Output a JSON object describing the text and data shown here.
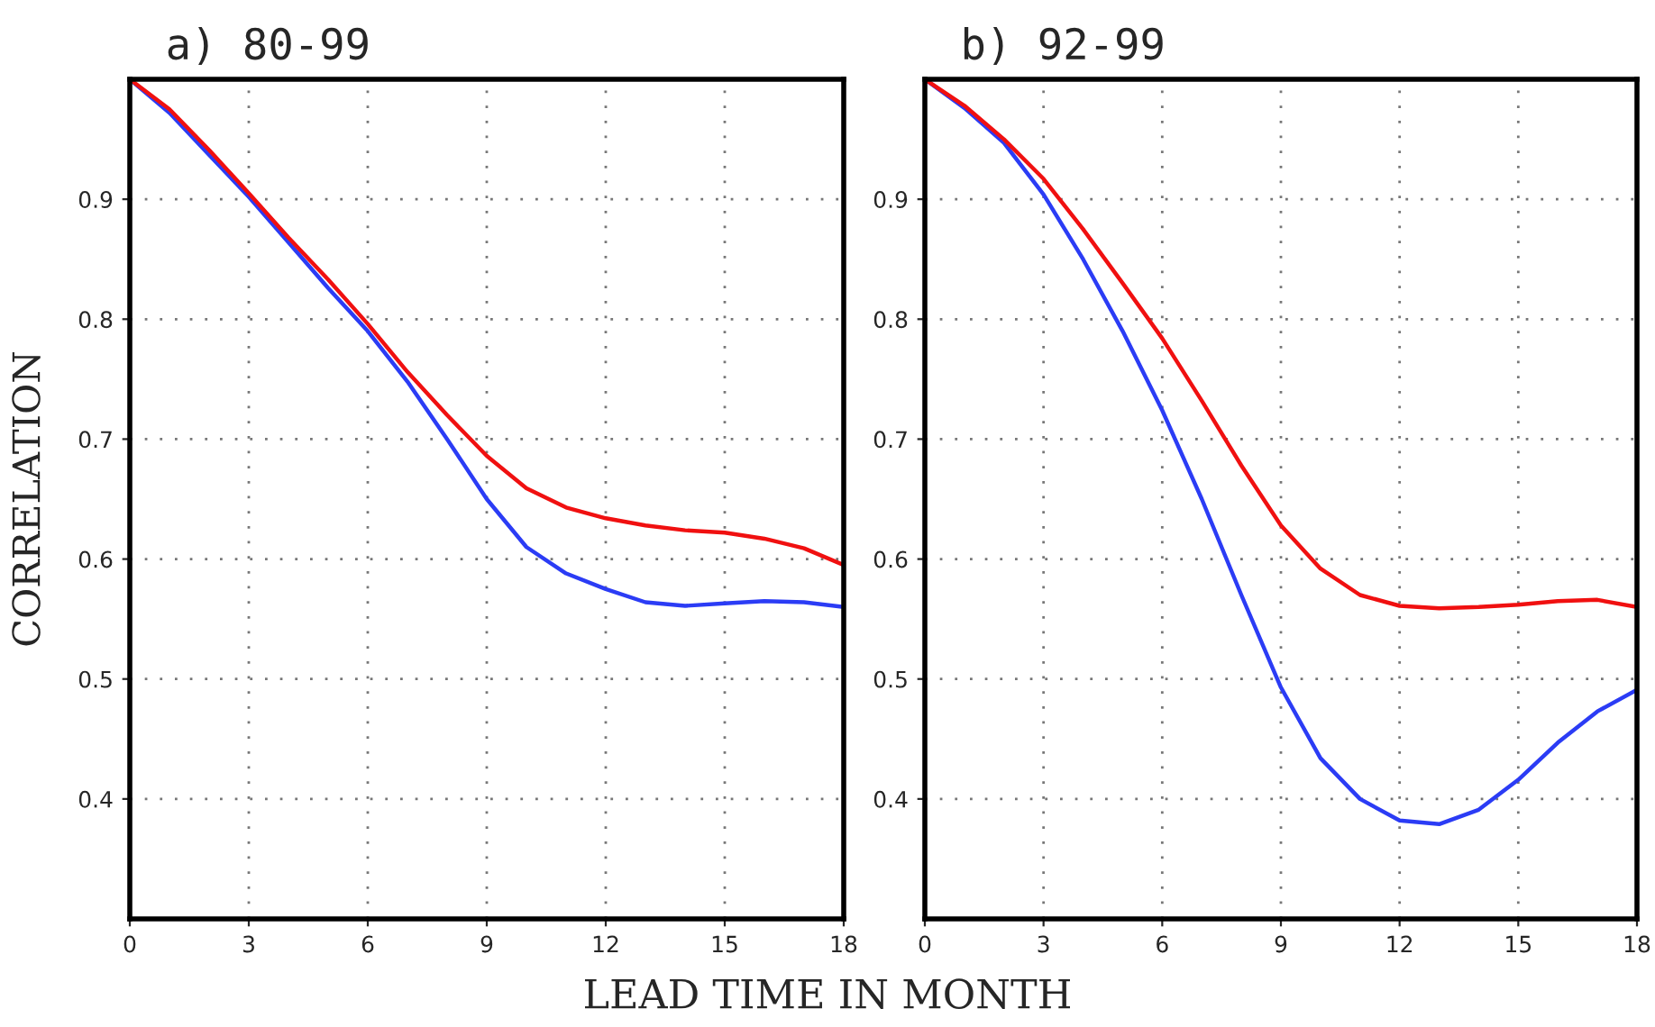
{
  "chart_data": [
    {
      "type": "line",
      "title": "a) 80-99",
      "ylabel": "CORRELATION",
      "xlabel": "LEAD TIME IN MONTH",
      "x": [
        0,
        1,
        2,
        3,
        4,
        5,
        6,
        7,
        8,
        9,
        10,
        11,
        12,
        13,
        14,
        15,
        16,
        17,
        18
      ],
      "series": [
        {
          "color": "#2b3cf5",
          "values": [
            1.0,
            0.972,
            0.937,
            0.902,
            0.864,
            0.826,
            0.79,
            0.748,
            0.7,
            0.65,
            0.61,
            0.588,
            0.575,
            0.564,
            0.561,
            0.563,
            0.565,
            0.564,
            0.56
          ]
        },
        {
          "color": "#f01010",
          "values": [
            1.0,
            0.975,
            0.941,
            0.905,
            0.868,
            0.833,
            0.796,
            0.756,
            0.72,
            0.686,
            0.659,
            0.643,
            0.634,
            0.628,
            0.624,
            0.622,
            0.617,
            0.609,
            0.595
          ]
        }
      ],
      "xlim": [
        0,
        18
      ],
      "xticks": [
        0,
        3,
        6,
        9,
        12,
        15,
        18
      ],
      "ylim": [
        0.3,
        1.0
      ],
      "yticks": [
        0.4,
        0.5,
        0.6,
        0.7,
        0.8,
        0.9
      ],
      "grid": true,
      "line_style": "solid",
      "marker": "none"
    },
    {
      "type": "line",
      "title": "b) 92-99",
      "x": [
        0,
        1,
        2,
        3,
        4,
        5,
        6,
        7,
        8,
        9,
        10,
        11,
        12,
        13,
        14,
        15,
        16,
        17,
        18
      ],
      "series": [
        {
          "color": "#2b3cf5",
          "values": [
            1.0,
            0.976,
            0.947,
            0.904,
            0.85,
            0.79,
            0.724,
            0.65,
            0.57,
            0.493,
            0.434,
            0.4,
            0.382,
            0.379,
            0.391,
            0.416,
            0.447,
            0.473,
            0.491
          ]
        },
        {
          "color": "#f01010",
          "values": [
            1.0,
            0.978,
            0.95,
            0.917,
            0.875,
            0.83,
            0.784,
            0.732,
            0.678,
            0.628,
            0.592,
            0.57,
            0.561,
            0.559,
            0.56,
            0.562,
            0.565,
            0.566,
            0.56
          ]
        }
      ],
      "xlim": [
        0,
        18
      ],
      "xticks": [
        0,
        3,
        6,
        9,
        12,
        15,
        18
      ],
      "ylim": [
        0.3,
        1.0
      ],
      "yticks": [
        0.4,
        0.5,
        0.6,
        0.7,
        0.8,
        0.9
      ],
      "grid": true,
      "line_style": "solid",
      "marker": "none"
    }
  ]
}
